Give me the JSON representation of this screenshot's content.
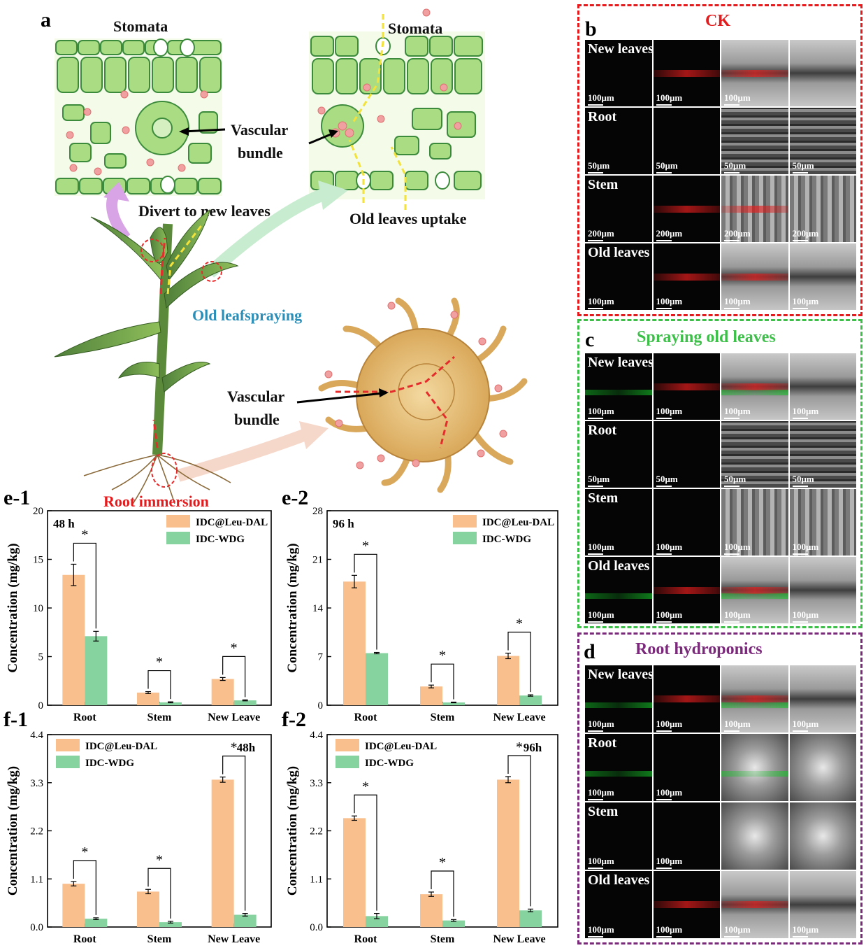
{
  "panel_labels": {
    "a": "a",
    "b": "b",
    "c": "c",
    "d": "d",
    "e1": "e-1",
    "e2": "e-2",
    "f1": "f-1",
    "f2": "f-2"
  },
  "illustration": {
    "stomata_left": "Stomata",
    "stomata_right": "Stomata",
    "vascular_bundle_top": [
      "Vascular",
      "bundle"
    ],
    "vascular_bundle_bottom": [
      "Vascular",
      "bundle"
    ],
    "divert_label": "Divert to new leaves",
    "uptake_label": "Old leaves uptake",
    "spraying_label": "Old leafspraying",
    "root_label": "Root immersion"
  },
  "micro": {
    "b": {
      "title": "CK",
      "color": "#e41a1c",
      "rows": [
        {
          "label": "New leaves",
          "scale": [
            "100μm",
            "100μm",
            "100μm",
            ""
          ]
        },
        {
          "label": "Root",
          "scale": [
            "50μm",
            "50μm",
            "50μm",
            "50μm"
          ]
        },
        {
          "label": "Stem",
          "scale": [
            "200μm",
            "200μm",
            "200μm",
            "200μm"
          ]
        },
        {
          "label": "Old leaves",
          "scale": [
            "100μm",
            "100μm",
            "100μm",
            "100μm"
          ]
        }
      ]
    },
    "c": {
      "title": "Spraying old leaves",
      "color": "#3dbf4a",
      "rows": [
        {
          "label": "New leaves",
          "scale": [
            "100μm",
            "100μm",
            "100μm",
            "100μm"
          ]
        },
        {
          "label": "Root",
          "scale": [
            "50μm",
            "50μm",
            "50μm",
            "50μm"
          ]
        },
        {
          "label": "Stem",
          "scale": [
            "100μm",
            "100μm",
            "100μm",
            "100μm"
          ]
        },
        {
          "label": "Old leaves",
          "scale": [
            "100μm",
            "100μm",
            "100μm",
            "100μm"
          ]
        }
      ]
    },
    "d": {
      "title": "Root hydroponics",
      "color": "#7b2a7b",
      "rows": [
        {
          "label": "New leaves",
          "scale": [
            "100μm",
            "100μm",
            "100μm",
            "100μm"
          ]
        },
        {
          "label": "Root",
          "scale": [
            "100μm",
            "100μm",
            "",
            ""
          ]
        },
        {
          "label": "Stem",
          "scale": [
            "100μm",
            "100μm",
            "",
            ""
          ]
        },
        {
          "label": "Old leaves",
          "scale": [
            "100μm",
            "100μm",
            "100μm",
            "100μm"
          ]
        }
      ]
    }
  },
  "colors": {
    "series1": "#f9c08e",
    "series2": "#86d3a0"
  },
  "chart_data": [
    {
      "id": "e1",
      "type": "bar",
      "annotation": "48 h",
      "categories": [
        "Root",
        "Stem",
        "New Leave"
      ],
      "ylabel": "Concentration (mg/kg)",
      "ylim": [
        0,
        20
      ],
      "yticks": [
        0,
        5,
        10,
        15,
        20
      ],
      "legend_position": "top-right",
      "series": [
        {
          "name": "IDC@Leu-DAL",
          "values": [
            13.4,
            1.3,
            2.7
          ],
          "errors": [
            1.1,
            0.1,
            0.15
          ]
        },
        {
          "name": "IDC-WDG",
          "values": [
            7.1,
            0.3,
            0.5
          ],
          "errors": [
            0.5,
            0.05,
            0.05
          ]
        }
      ],
      "significance": [
        "*",
        "*",
        "*"
      ]
    },
    {
      "id": "e2",
      "type": "bar",
      "annotation": "96 h",
      "categories": [
        "Root",
        "Stem",
        "New Leave"
      ],
      "ylabel": "Concentration (mg/kg)",
      "ylim": [
        0,
        28
      ],
      "yticks": [
        0,
        7,
        14,
        21,
        28
      ],
      "legend_position": "top-right",
      "series": [
        {
          "name": "IDC@Leu-DAL",
          "values": [
            17.8,
            2.7,
            7.1
          ],
          "errors": [
            0.9,
            0.2,
            0.4
          ]
        },
        {
          "name": "IDC-WDG",
          "values": [
            7.5,
            0.4,
            1.4
          ],
          "errors": [
            0.1,
            0.05,
            0.1
          ]
        }
      ],
      "significance": [
        "*",
        "*",
        "*"
      ]
    },
    {
      "id": "f1",
      "type": "bar",
      "annotation": "48h",
      "categories": [
        "Root",
        "Stem",
        "New Leave"
      ],
      "ylabel": "Concentration (mg/kg)",
      "ylim": [
        0,
        4.4
      ],
      "yticks": [
        0.0,
        1.1,
        2.2,
        3.3,
        4.4
      ],
      "legend_position": "top-left",
      "series": [
        {
          "name": "IDC@Leu-DAL",
          "values": [
            0.99,
            0.81,
            3.37
          ],
          "errors": [
            0.05,
            0.05,
            0.06
          ]
        },
        {
          "name": "IDC-WDG",
          "values": [
            0.19,
            0.11,
            0.28
          ],
          "errors": [
            0.02,
            0.02,
            0.03
          ]
        }
      ],
      "significance": [
        "*",
        "*",
        "*"
      ]
    },
    {
      "id": "f2",
      "type": "bar",
      "annotation": "96h",
      "categories": [
        "Root",
        "Stem",
        "New Leave"
      ],
      "ylabel": "Concentration (mg/kg)",
      "ylim": [
        0,
        4.4
      ],
      "yticks": [
        0.0,
        1.1,
        2.2,
        3.3,
        4.4
      ],
      "legend_position": "top-left",
      "series": [
        {
          "name": "IDC@Leu-DAL",
          "values": [
            2.49,
            0.75,
            3.37
          ],
          "errors": [
            0.05,
            0.05,
            0.07
          ]
        },
        {
          "name": "IDC-WDG",
          "values": [
            0.25,
            0.15,
            0.38
          ],
          "errors": [
            0.06,
            0.02,
            0.03
          ]
        }
      ],
      "significance": [
        "*",
        "*",
        "*"
      ]
    }
  ]
}
